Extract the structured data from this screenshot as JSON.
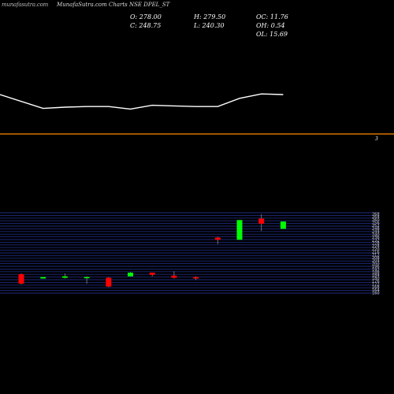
{
  "header": {
    "watermark": "munafasutra.com",
    "title": "MunafaSutra.com Charts NSE DPEL_ST"
  },
  "stats": {
    "open": "O: 278.00",
    "close": "C: 248.75",
    "high": "H: 279.50",
    "low": "L: 240.30",
    "oc": "OC: 11.76",
    "oh": "OH: 0.54",
    "ol": "OL: 15.69"
  },
  "indicator": {
    "right_label": "3",
    "line_color": "#ffffff",
    "divider_color": "#ff8c00"
  },
  "colors": {
    "up": "#00ff00",
    "down": "#ff0000",
    "grid": "#1e2a7a",
    "background": "#000000"
  },
  "chart_data": [
    {
      "type": "line",
      "x": [
        1,
        2,
        3,
        4,
        5,
        6,
        7,
        8,
        9,
        10,
        11,
        12,
        13
      ],
      "values": [
        50,
        28,
        30,
        31,
        31,
        27,
        33,
        32,
        31,
        31,
        44,
        51,
        50
      ],
      "ylim": [
        0,
        100
      ]
    },
    {
      "type": "candlestick",
      "x": [
        1,
        2,
        3,
        4,
        5,
        6,
        7,
        8,
        9,
        10,
        11,
        12,
        13
      ],
      "ohlc": [
        {
          "open": 186,
          "high": 187,
          "low": 172,
          "close": 173
        },
        {
          "open": 180,
          "high": 182,
          "low": 180,
          "close": 182
        },
        {
          "open": 181,
          "high": 187,
          "low": 180,
          "close": 183
        },
        {
          "open": 181,
          "high": 183,
          "low": 173,
          "close": 182
        },
        {
          "open": 181,
          "high": 182,
          "low": 168,
          "close": 169
        },
        {
          "open": 183,
          "high": 189,
          "low": 183,
          "close": 188
        },
        {
          "open": 188,
          "high": 188,
          "low": 183,
          "close": 185
        },
        {
          "open": 184,
          "high": 190,
          "low": 180,
          "close": 181
        },
        {
          "open": 182,
          "high": 183,
          "low": 178,
          "close": 180
        },
        {
          "open": 236,
          "high": 237,
          "low": 227,
          "close": 233
        },
        {
          "open": 233,
          "high": 260,
          "low": 233,
          "close": 260
        },
        {
          "open": 262,
          "high": 268,
          "low": 245,
          "close": 255
        },
        {
          "open": 248,
          "high": 258,
          "low": 248,
          "close": 258
        }
      ],
      "ylim": [
        160,
        270
      ]
    }
  ]
}
